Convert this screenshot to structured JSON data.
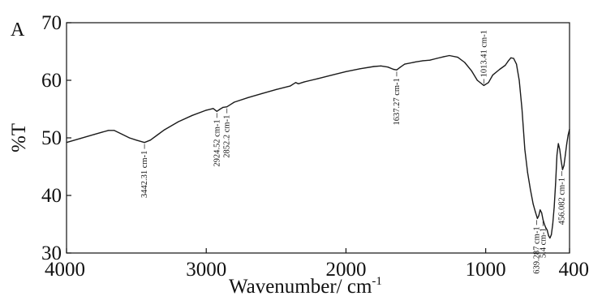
{
  "chart_data": {
    "type": "line",
    "panel_label": "A",
    "title": "",
    "xlabel": "Wavenumber/ cm",
    "xlabel_superscript": "-1",
    "ylabel": "%T",
    "xlim": [
      4000,
      400
    ],
    "ylim": [
      30,
      70
    ],
    "x_reversed": true,
    "grid": false,
    "x_ticks": [
      {
        "value": 4000,
        "label": "4000"
      },
      {
        "value": 3000,
        "label": "3000"
      },
      {
        "value": 2000,
        "label": "2000"
      },
      {
        "value": 1000,
        "label": "1000"
      },
      {
        "value": 400,
        "label": "400"
      }
    ],
    "y_ticks": [
      {
        "value": 30,
        "label": "30"
      },
      {
        "value": 40,
        "label": "40"
      },
      {
        "value": 50,
        "label": "50"
      },
      {
        "value": 60,
        "label": "60"
      },
      {
        "value": 70,
        "label": "70"
      }
    ],
    "series": [
      {
        "color": "#1a1a1a",
        "x": [
          4000,
          3900,
          3800,
          3700,
          3660,
          3600,
          3550,
          3500,
          3442,
          3400,
          3350,
          3300,
          3200,
          3100,
          3000,
          2950,
          2924,
          2900,
          2880,
          2852,
          2800,
          2700,
          2600,
          2500,
          2400,
          2360,
          2340,
          2300,
          2200,
          2100,
          2000,
          1900,
          1800,
          1750,
          1700,
          1660,
          1637,
          1610,
          1580,
          1500,
          1450,
          1400,
          1350,
          1300,
          1260,
          1200,
          1150,
          1100,
          1060,
          1013,
          980,
          950,
          900,
          860,
          840,
          820,
          800,
          780,
          760,
          740,
          720,
          700,
          680,
          660,
          645,
          630,
          620,
          610,
          600,
          590,
          580,
          570,
          560,
          550,
          540,
          530,
          520,
          510,
          500,
          490,
          480,
          470,
          460,
          450,
          440,
          430,
          420,
          410,
          400
        ],
        "y": [
          49.2,
          49.9,
          50.6,
          51.3,
          51.3,
          50.6,
          50.0,
          49.6,
          49.2,
          49.6,
          50.5,
          51.4,
          52.8,
          53.9,
          54.8,
          55.1,
          54.6,
          55.0,
          55.3,
          55.4,
          56.2,
          57.0,
          57.7,
          58.4,
          59.0,
          59.6,
          59.4,
          59.7,
          60.3,
          60.9,
          61.5,
          62.0,
          62.4,
          62.5,
          62.3,
          61.9,
          61.8,
          62.3,
          62.8,
          63.2,
          63.4,
          63.5,
          63.8,
          64.1,
          64.3,
          64.0,
          63.1,
          61.6,
          60.0,
          59.1,
          59.6,
          60.9,
          61.9,
          62.6,
          63.3,
          63.9,
          63.8,
          62.8,
          60.0,
          55.0,
          48.0,
          44.0,
          41.0,
          38.5,
          37.2,
          36.0,
          36.5,
          37.5,
          37.0,
          35.8,
          35.0,
          34.4,
          34.0,
          33.0,
          32.6,
          33.2,
          35.0,
          38.0,
          42.0,
          47.0,
          49.0,
          48.0,
          46.0,
          44.5,
          45.2,
          47.0,
          49.0,
          50.5,
          51.5
        ]
      }
    ],
    "annotations": [
      {
        "text": "3442.31 cm-1",
        "x": 3442,
        "y": 49.2
      },
      {
        "text": "2924.52 cm-1",
        "x": 2924,
        "y": 54.6
      },
      {
        "text": "2852.2 cm-1",
        "x": 2852,
        "y": 55.4
      },
      {
        "text": "1637.27 cm-1",
        "x": 1637,
        "y": 61.8
      },
      {
        "text": "1013.41 cm-1",
        "x": 1013,
        "y": 59.1
      },
      {
        "text": "639.287 cm-1",
        "x": 635,
        "y": 36.0
      },
      {
        "text": "5.4 cm-1",
        "x": 590,
        "y": 35.8
      },
      {
        "text": "456.082 cm-1",
        "x": 456,
        "y": 44.5
      }
    ]
  }
}
